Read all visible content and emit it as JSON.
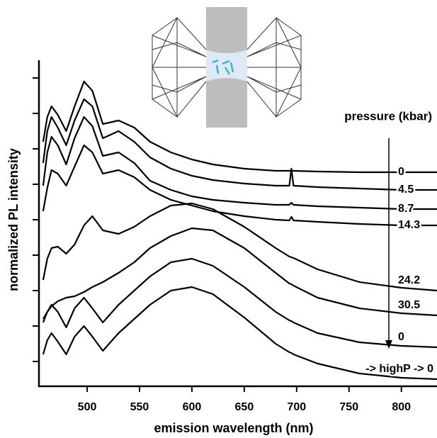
{
  "chart_data": {
    "type": "line",
    "x_label": "emission wavelength (nm)",
    "y_label": "normalized PL intensity",
    "legend_title": "pressure (kbar)",
    "x": [
      458,
      462,
      466,
      472,
      480,
      488,
      497,
      505,
      515,
      530,
      545,
      560,
      580,
      600,
      620,
      650,
      680,
      693,
      695,
      697,
      720,
      760,
      800,
      834
    ],
    "xlim": [
      454,
      834
    ],
    "xticks": [
      500,
      550,
      600,
      650,
      700,
      750,
      800
    ],
    "ylim": [
      0,
      460
    ],
    "yticks": [
      35,
      85,
      135,
      185,
      235,
      285,
      335,
      385,
      435
    ],
    "series": [
      {
        "name": "0",
        "color": "#000000",
        "values": [
          345,
          380,
          395,
          383,
          360,
          395,
          430,
          417,
          370,
          375,
          365,
          345,
          330,
          320,
          313,
          307,
          304,
          304,
          304,
          304,
          303,
          302,
          302,
          302
        ]
      },
      {
        "name": "4.5",
        "color": "#000000",
        "values": [
          315,
          360,
          380,
          365,
          340,
          375,
          405,
          395,
          350,
          360,
          345,
          323,
          307,
          297,
          291,
          286,
          283,
          283,
          307,
          283,
          281,
          279,
          277,
          277
        ]
      },
      {
        "name": "8.7",
        "color": "#000000",
        "values": [
          283,
          330,
          352,
          340,
          313,
          350,
          380,
          367,
          325,
          330,
          315,
          290,
          277,
          268,
          263,
          259,
          256,
          256,
          259,
          256,
          254,
          252,
          250,
          250
        ]
      },
      {
        "name": "14.3",
        "color": "#000000",
        "values": [
          247,
          280,
          305,
          300,
          283,
          310,
          340,
          330,
          300,
          305,
          295,
          277,
          263,
          255,
          247,
          240,
          235,
          234,
          239,
          234,
          232,
          229,
          227,
          227
        ]
      },
      {
        "name": "24.2",
        "color": "#000000",
        "values": [
          150,
          180,
          195,
          197,
          187,
          200,
          227,
          240,
          220,
          215,
          225,
          240,
          255,
          258,
          250,
          225,
          195,
          183,
          182,
          181,
          165,
          147,
          139,
          135
        ]
      },
      {
        "name": "30.5",
        "color": "#000000",
        "values": [
          95,
          105,
          113,
          120,
          125,
          127,
          133,
          140,
          147,
          160,
          175,
          195,
          212,
          223,
          220,
          195,
          160,
          145,
          144,
          142,
          125,
          110,
          103,
          100
        ]
      },
      {
        "name": "0",
        "color": "#000000",
        "values": [
          90,
          105,
          115,
          105,
          83,
          110,
          125,
          110,
          90,
          115,
          135,
          155,
          175,
          180,
          170,
          140,
          105,
          93,
          92,
          90,
          75,
          62,
          57,
          55
        ]
      },
      {
        "name": "-> highP -> 0",
        "color": "#000000",
        "values": [
          45,
          65,
          75,
          63,
          45,
          70,
          85,
          70,
          50,
          75,
          95,
          115,
          135,
          140,
          130,
          97,
          60,
          48,
          47,
          45,
          32,
          18,
          12,
          10
        ]
      }
    ]
  }
}
